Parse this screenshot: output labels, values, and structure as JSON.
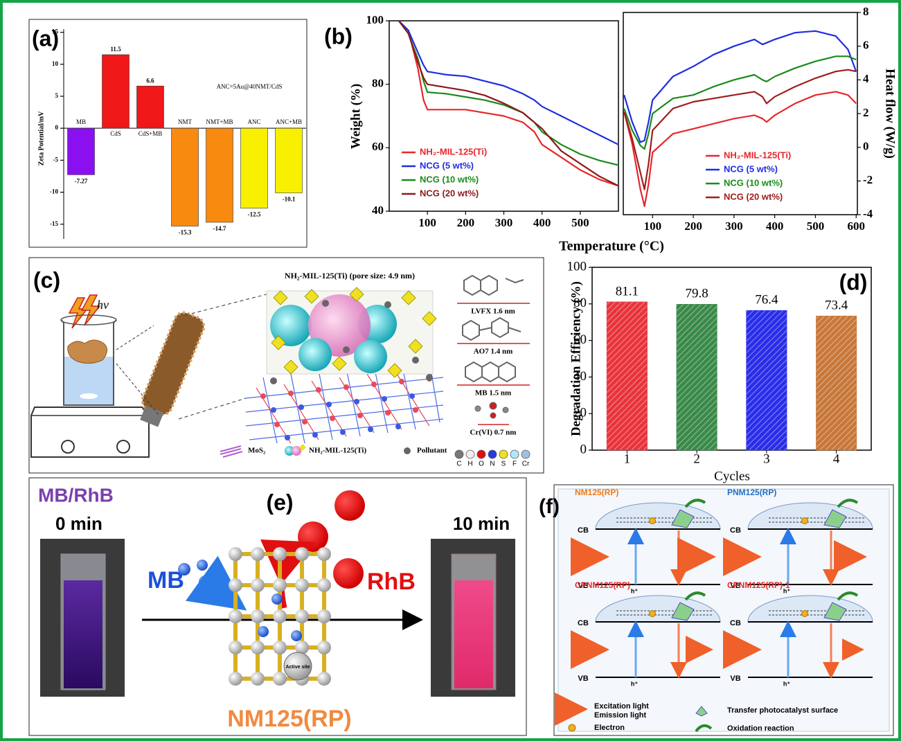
{
  "chart_data": [
    {
      "type": "bar",
      "panel_label": "(a)",
      "y_label": "Zeta Potential/mV",
      "annotation": "ANC=5Au@40NMT/CdS",
      "categories": [
        "MB",
        "CdS",
        "CdS+MB",
        "NMT",
        "NMT+MB",
        "ANC",
        "ANC+MB"
      ],
      "values": [
        -7.27,
        11.5,
        6.6,
        -15.3,
        -14.7,
        -12.5,
        -10.1
      ],
      "colors": [
        "#8b10f0",
        "#f01818",
        "#f01818",
        "#f98a10",
        "#f98a10",
        "#f8f000",
        "#f8f000"
      ],
      "ylim": [
        -17.3,
        15.5
      ],
      "yticks": [
        -15,
        -10,
        -5,
        0,
        5,
        10,
        15
      ]
    },
    {
      "type": "line",
      "panel_label": "(b)",
      "y_label": "Weight (%)",
      "x_label": "Temperature (°C)",
      "x": [
        25,
        50,
        75,
        90,
        100,
        150,
        200,
        250,
        300,
        350,
        380,
        400,
        450,
        500,
        550,
        600
      ],
      "series": [
        {
          "name": "NH₂-MIL-125(Ti)",
          "color": "#e8262a",
          "values": [
            100,
            97,
            85,
            75,
            72,
            72,
            72,
            71,
            70,
            68,
            65,
            61,
            57,
            53,
            50,
            48
          ]
        },
        {
          "name": "NCG (5 wt%)",
          "color": "#1f2de0",
          "values": [
            100,
            97,
            90,
            86,
            84,
            83,
            82.5,
            81,
            79.5,
            77,
            75,
            73,
            70,
            67,
            64,
            61
          ]
        },
        {
          "name": "NCG (10 wt%)",
          "color": "#1a8a1a",
          "values": [
            100,
            96,
            88,
            81,
            77.5,
            77,
            76,
            75,
            73.5,
            71,
            68,
            65,
            61,
            58,
            56,
            54.5
          ]
        },
        {
          "name": "NCG (20 wt%)",
          "color": "#8b1a1a",
          "values": [
            100,
            96,
            87,
            82,
            80,
            79,
            78,
            76.5,
            74,
            71,
            68,
            66,
            59,
            55,
            51,
            48
          ]
        }
      ],
      "xlim": [
        0,
        600
      ],
      "xticks": [
        100,
        200,
        300,
        400,
        500
      ],
      "ylim": [
        40,
        100
      ],
      "yticks": [
        40,
        60,
        80,
        100
      ],
      "legend": "lower left"
    },
    {
      "type": "line",
      "y_label": "Heat flow (W/g)",
      "yaxis_side": "right",
      "x": [
        30,
        50,
        70,
        80,
        90,
        100,
        150,
        200,
        250,
        300,
        350,
        370,
        380,
        400,
        450,
        500,
        550,
        580,
        600
      ],
      "series": [
        {
          "name": "NH₂-MIL-125(Ti)",
          "color": "#e8262a",
          "values": [
            2.1,
            0.2,
            -2.5,
            -3.5,
            -2.2,
            -0.3,
            0.8,
            1.1,
            1.4,
            1.7,
            1.9,
            1.7,
            1.5,
            1.9,
            2.6,
            3.1,
            3.3,
            3.1,
            2.6
          ]
        },
        {
          "name": "NCG (5 wt%)",
          "color": "#1f2de0",
          "values": [
            3.1,
            1.5,
            0.3,
            0.4,
            1.5,
            2.8,
            4.2,
            4.8,
            5.5,
            6.0,
            6.4,
            6.1,
            6.2,
            6.4,
            6.8,
            6.9,
            6.6,
            5.8,
            4.5
          ]
        },
        {
          "name": "NCG (10 wt%)",
          "color": "#1a8a1a",
          "values": [
            2.3,
            1.0,
            0.1,
            -0.1,
            0.8,
            2.0,
            2.9,
            3.1,
            3.6,
            4.0,
            4.3,
            4.0,
            3.9,
            4.2,
            4.7,
            5.1,
            5.4,
            5.4,
            5.2
          ]
        },
        {
          "name": "NCG (20 wt%)",
          "color": "#a01c1c",
          "values": [
            2.1,
            0.5,
            -1.5,
            -2.5,
            -1.0,
            1.0,
            2.3,
            2.7,
            2.9,
            3.1,
            3.3,
            3.0,
            2.6,
            3.0,
            3.6,
            4.1,
            4.5,
            4.6,
            4.5
          ]
        }
      ],
      "xlim": [
        28,
        603
      ],
      "xticks": [
        100,
        200,
        300,
        400,
        500,
        600
      ],
      "ylim": [
        -4,
        8
      ],
      "yticks": [
        -4,
        -2,
        0,
        2,
        4,
        6,
        8
      ],
      "legend": "lower center"
    },
    {
      "type": "bar",
      "panel_label": "(d)",
      "y_label": "Degradation Efficiency (%)",
      "x_label": "Cycles",
      "categories": [
        "1",
        "2",
        "3",
        "4"
      ],
      "values": [
        81.1,
        79.8,
        76.4,
        73.4
      ],
      "colors": [
        "#e8343c",
        "#3a8a4a",
        "#2a2ee8",
        "#c8783a"
      ],
      "hatch": true,
      "ylim": [
        0,
        100
      ],
      "yticks": [
        0,
        20,
        40,
        60,
        80,
        100
      ]
    }
  ],
  "panel_c": {
    "label": "(c)",
    "light": "hν",
    "framework_title": "NH₂-MIL-125(Ti) (pore size: 4.9 nm)",
    "molecules": [
      "LVFX 1.6 nm",
      "AO7 1.4 nm",
      "MB 1.5 nm",
      "Cr(VI) 0.7 nm"
    ],
    "legend": [
      "MoS₂",
      "NH₂-MIL-125(Ti)",
      "Pollutant"
    ],
    "elements": [
      "C",
      "H",
      "O",
      "N",
      "S",
      "F",
      "Cr"
    ]
  },
  "panel_e": {
    "label": "(e)",
    "mixture": "MB/RhB",
    "start_time": "0 min",
    "end_time": "10 min",
    "adsorbed": "MB",
    "released": "RhB",
    "material": "NM125(RP)",
    "site": "Active site"
  },
  "panel_f": {
    "label": "(f)",
    "schemes": [
      {
        "name": "NM125(RP)",
        "color": "#f07a1a"
      },
      {
        "name": "PNM125(RP)",
        "color": "#1f6fc8"
      },
      {
        "name": "CPNM125(RP)",
        "color": "#e82a2a"
      },
      {
        "name": "CPNM125(RP)-1",
        "color": "#e82a2a"
      }
    ],
    "cb": "CB",
    "vb": "VB",
    "hole": "h⁺",
    "legend": [
      "Excitation light",
      "Emission light",
      "Electron",
      "Transfer photocatalyst surface",
      "Oxidation reaction"
    ]
  }
}
